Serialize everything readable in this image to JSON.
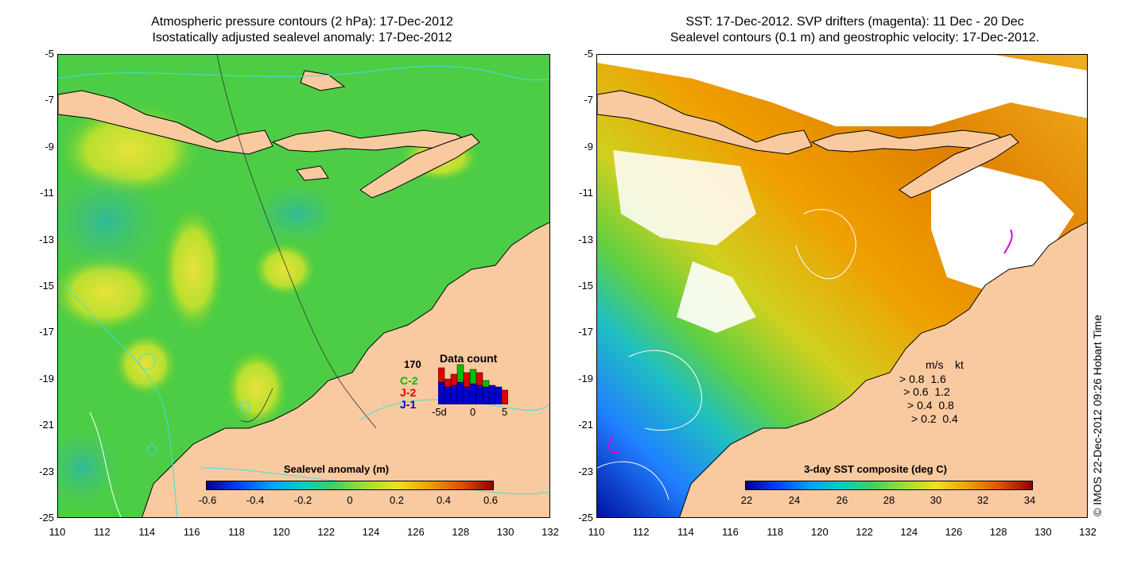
{
  "left_panel": {
    "title_line1": "Atmospheric pressure contours (2 hPa): 17-Dec-2012",
    "title_line2": "Isostatically adjusted sealevel anomaly: 17-Dec-2012",
    "colorbar": {
      "title": "Sealevel anomaly (m)",
      "ticks": [
        "-0.6",
        "-0.4",
        "-0.2",
        "0",
        "0.2",
        "0.4",
        "0.6"
      ]
    },
    "data_count": {
      "title": "Data count",
      "max": "170",
      "missions": [
        {
          "label": "C-2",
          "color": "#00c000"
        },
        {
          "label": "J-2",
          "color": "#e00000"
        },
        {
          "label": "J-1",
          "color": "#0000d0"
        }
      ],
      "axis_labels": [
        "-5d",
        "0",
        "5"
      ]
    }
  },
  "right_panel": {
    "title_line1": "SST: 17-Dec-2012. SVP drifters (magenta): 11 Dec - 20 Dec",
    "title_line2": "Sealevel contours (0.1 m) and geostrophic velocity: 17-Dec-2012.",
    "colorbar": {
      "title": "3-day SST composite (deg C)",
      "ticks": [
        "22",
        "24",
        "26",
        "28",
        "30",
        "32",
        "34"
      ]
    },
    "velocity_legend": {
      "header_ms": "m/s",
      "header_kt": "kt",
      "rows": [
        {
          "ms": "0.8",
          "kt": "1.6"
        },
        {
          "ms": "0.6",
          "kt": "1.2"
        },
        {
          "ms": "0.4",
          "kt": "0.8"
        },
        {
          "ms": "0.2",
          "kt": "0.4"
        }
      ]
    },
    "credit": "© IMOS 22-Dec-2012 09:26 Hobart Time"
  },
  "axes": {
    "lat_ticks": [
      "-5",
      "-7",
      "-9",
      "-11",
      "-13",
      "-15",
      "-17",
      "-19",
      "-21",
      "-23",
      "-25"
    ],
    "lon_ticks": [
      "110",
      "112",
      "114",
      "116",
      "118",
      "120",
      "122",
      "124",
      "126",
      "128",
      "130",
      "132"
    ]
  },
  "colors": {
    "land": "#f9c9a0",
    "contour_cyan": "#40e0e0",
    "drifter": "#e000e0"
  }
}
